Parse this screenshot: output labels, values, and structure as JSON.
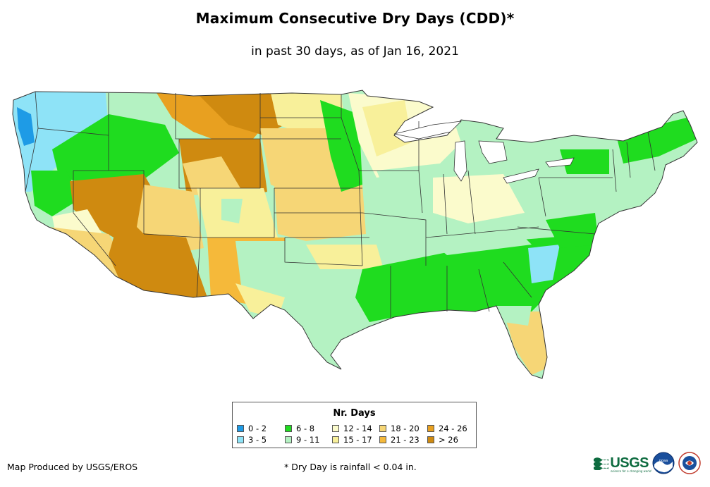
{
  "title": "Maximum Consecutive Dry Days (CDD)*",
  "subtitle": "in past 30 days, as of Jan 16, 2021",
  "legend": {
    "title": "Nr. Days",
    "items": [
      {
        "label": "0 - 2",
        "color": "#1e9be6"
      },
      {
        "label": "3 - 5",
        "color": "#8ee3f7"
      },
      {
        "label": "6 - 8",
        "color": "#1fdc1f"
      },
      {
        "label": "9 - 11",
        "color": "#b4f2c2"
      },
      {
        "label": "12 - 14",
        "color": "#fbfbcc"
      },
      {
        "label": "15 - 17",
        "color": "#f8f09a"
      },
      {
        "label": "18 - 20",
        "color": "#f6d676"
      },
      {
        "label": "21 - 23",
        "color": "#f5b93a"
      },
      {
        "label": "24 - 26",
        "color": "#e8a020"
      },
      {
        "label": "> 26",
        "color": "#cf8a10"
      }
    ]
  },
  "credit": "Map Produced by USGS/EROS",
  "footnote": "* Dry Day is rainfall < 0.04 in.",
  "logos": {
    "usgs": {
      "text": "USGS",
      "tagline": "science for a changing world",
      "icon": "usgs-logo-icon"
    },
    "noaa": {
      "icon": "noaa-logo-icon"
    },
    "nws": {
      "icon": "nws-logo-icon"
    }
  }
}
